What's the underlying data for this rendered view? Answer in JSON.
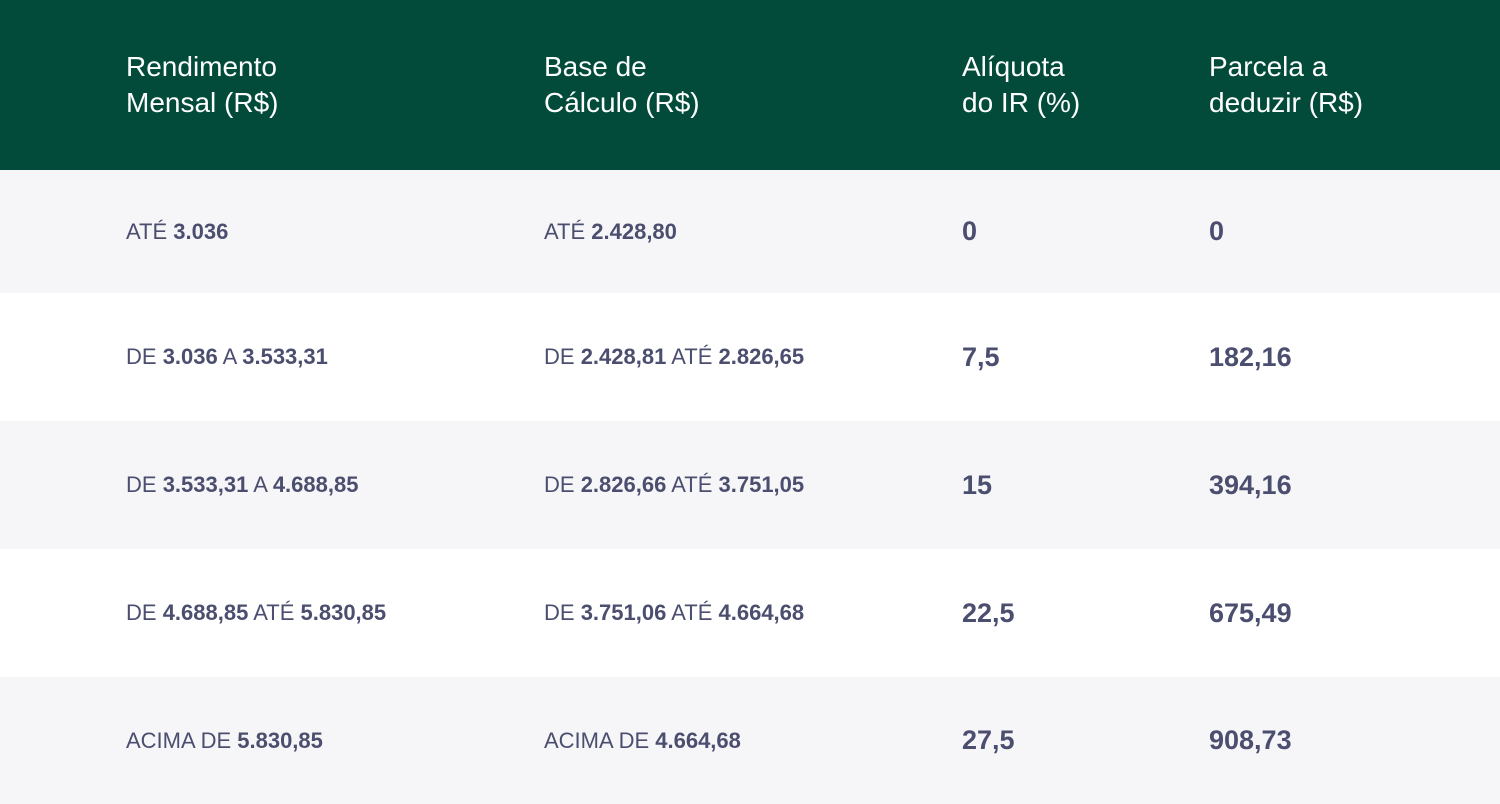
{
  "headers": [
    "Rendimento\nMensal (R$)",
    "Base de\nCálculo (R$)",
    "Alíquota\ndo IR (%)",
    "Parcela a\ndeduzir (R$)"
  ],
  "rows": [
    {
      "rendimento": [
        {
          "w": "ATÉ "
        },
        {
          "n": "3.036"
        }
      ],
      "base": [
        {
          "w": "ATÉ "
        },
        {
          "n": "2.428,80"
        }
      ],
      "aliquota": "0",
      "parcela": "0"
    },
    {
      "rendimento": [
        {
          "w": "DE "
        },
        {
          "n": "3.036"
        },
        {
          "w": " A "
        },
        {
          "n": "3.533,31"
        }
      ],
      "base": [
        {
          "w": "DE "
        },
        {
          "n": "2.428,81"
        },
        {
          "w": " ATÉ "
        },
        {
          "n": "2.826,65"
        }
      ],
      "aliquota": "7,5",
      "parcela": "182,16"
    },
    {
      "rendimento": [
        {
          "w": "DE "
        },
        {
          "n": "3.533,31"
        },
        {
          "w": " A "
        },
        {
          "n": "4.688,85"
        }
      ],
      "base": [
        {
          "w": "DE "
        },
        {
          "n": "2.826,66"
        },
        {
          "w": " ATÉ "
        },
        {
          "n": "3.751,05"
        }
      ],
      "aliquota": "15",
      "parcela": "394,16"
    },
    {
      "rendimento": [
        {
          "w": "DE "
        },
        {
          "n": "4.688,85"
        },
        {
          "w": " ATÉ "
        },
        {
          "n": "5.830,85"
        }
      ],
      "base": [
        {
          "w": "DE "
        },
        {
          "n": "3.751,06"
        },
        {
          "w": " ATÉ "
        },
        {
          "n": "4.664,68"
        }
      ],
      "aliquota": "22,5",
      "parcela": "675,49"
    },
    {
      "rendimento": [
        {
          "w": "ACIMA DE "
        },
        {
          "n": "5.830,85"
        }
      ],
      "base": [
        {
          "w": "ACIMA DE "
        },
        {
          "n": "4.664,68"
        }
      ],
      "aliquota": "27,5",
      "parcela": "908,73"
    }
  ],
  "colors": {
    "header_bg": "#024b3a",
    "header_text": "#ffffff",
    "row_alt_bg": "#f6f6f9",
    "row_text": "#4b4e6e"
  }
}
